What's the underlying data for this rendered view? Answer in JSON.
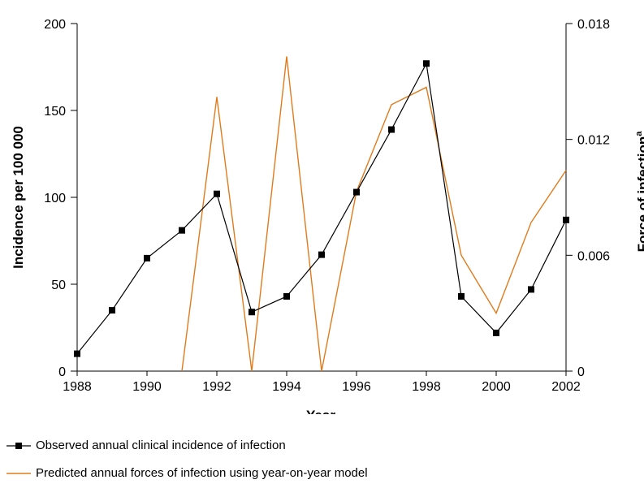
{
  "chart_data": {
    "type": "line",
    "title": "",
    "xlabel": "Year",
    "ylabel_left": "Incidence per 100 000",
    "ylabel_right": "Force of infection",
    "ylabel_right_superscript": "a",
    "xlim": [
      1988,
      2002
    ],
    "ylim_left": [
      0,
      200
    ],
    "ylim_right": [
      0,
      0.018
    ],
    "x_ticks": [
      1988,
      1990,
      1992,
      1994,
      1996,
      1998,
      2000,
      2002
    ],
    "x_tick_labels": [
      "1988",
      "1990",
      "1992",
      "1994",
      "1996",
      "1998",
      "2000",
      "2002"
    ],
    "y_left_ticks": [
      0,
      50,
      100,
      150,
      200
    ],
    "y_left_tick_labels": [
      "0",
      "50",
      "100",
      "150",
      "200"
    ],
    "y_right_ticks": [
      0,
      0.006,
      0.012,
      0.018
    ],
    "y_right_tick_labels": [
      "0",
      "0.006",
      "0.012",
      "0.018"
    ],
    "grid": false,
    "legend_position": "bottom-left",
    "series": [
      {
        "name": "Observed annual clinical incidence of infection",
        "axis": "left",
        "color": "#000000",
        "marker": "square",
        "x": [
          1988,
          1989,
          1990,
          1991,
          1992,
          1993,
          1994,
          1995,
          1996,
          1997,
          1998,
          1999,
          2000,
          2001,
          2002
        ],
        "y": [
          10,
          35,
          65,
          81,
          102,
          34,
          43,
          67,
          103,
          139,
          177,
          43,
          22,
          47,
          87
        ]
      },
      {
        "name": "Predicted annual forces of infection using year-on-year model",
        "axis": "right",
        "color": "#e07b1c",
        "marker": "none",
        "x": [
          1991,
          1992,
          1993,
          1994,
          1995,
          1996,
          1997,
          1998,
          1999,
          2000,
          2001,
          2002
        ],
        "y": [
          0,
          0.0142,
          0,
          0.0163,
          0,
          0.0093,
          0.0138,
          0.0147,
          0.006,
          0.003,
          0.0077,
          0.0104
        ]
      }
    ]
  }
}
